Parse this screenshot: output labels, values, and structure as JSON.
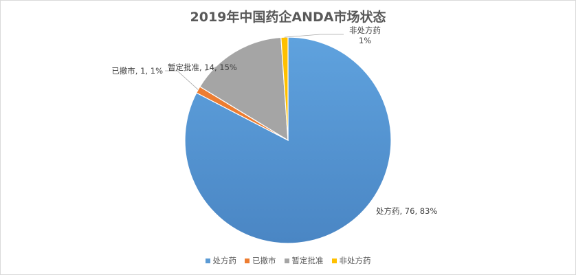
{
  "chart_data": {
    "type": "pie",
    "title": "2019年中国药企ANDA市场状态",
    "categories": [
      "处方药",
      "已撤市",
      "暂定批准",
      "非处方药"
    ],
    "values": [
      76,
      1,
      14,
      1
    ],
    "percent_labels": [
      "83%",
      "1%",
      "15%",
      "1%"
    ],
    "data_labels": [
      "处方药, 76, 83%",
      "已撤市, 1, 1%",
      "暂定批准, 14, 15%",
      "非处方药"
    ],
    "colors": [
      "#5b9bd5",
      "#ed7d31",
      "#a5a5a5",
      "#ffc000"
    ],
    "legend_position": "bottom"
  }
}
